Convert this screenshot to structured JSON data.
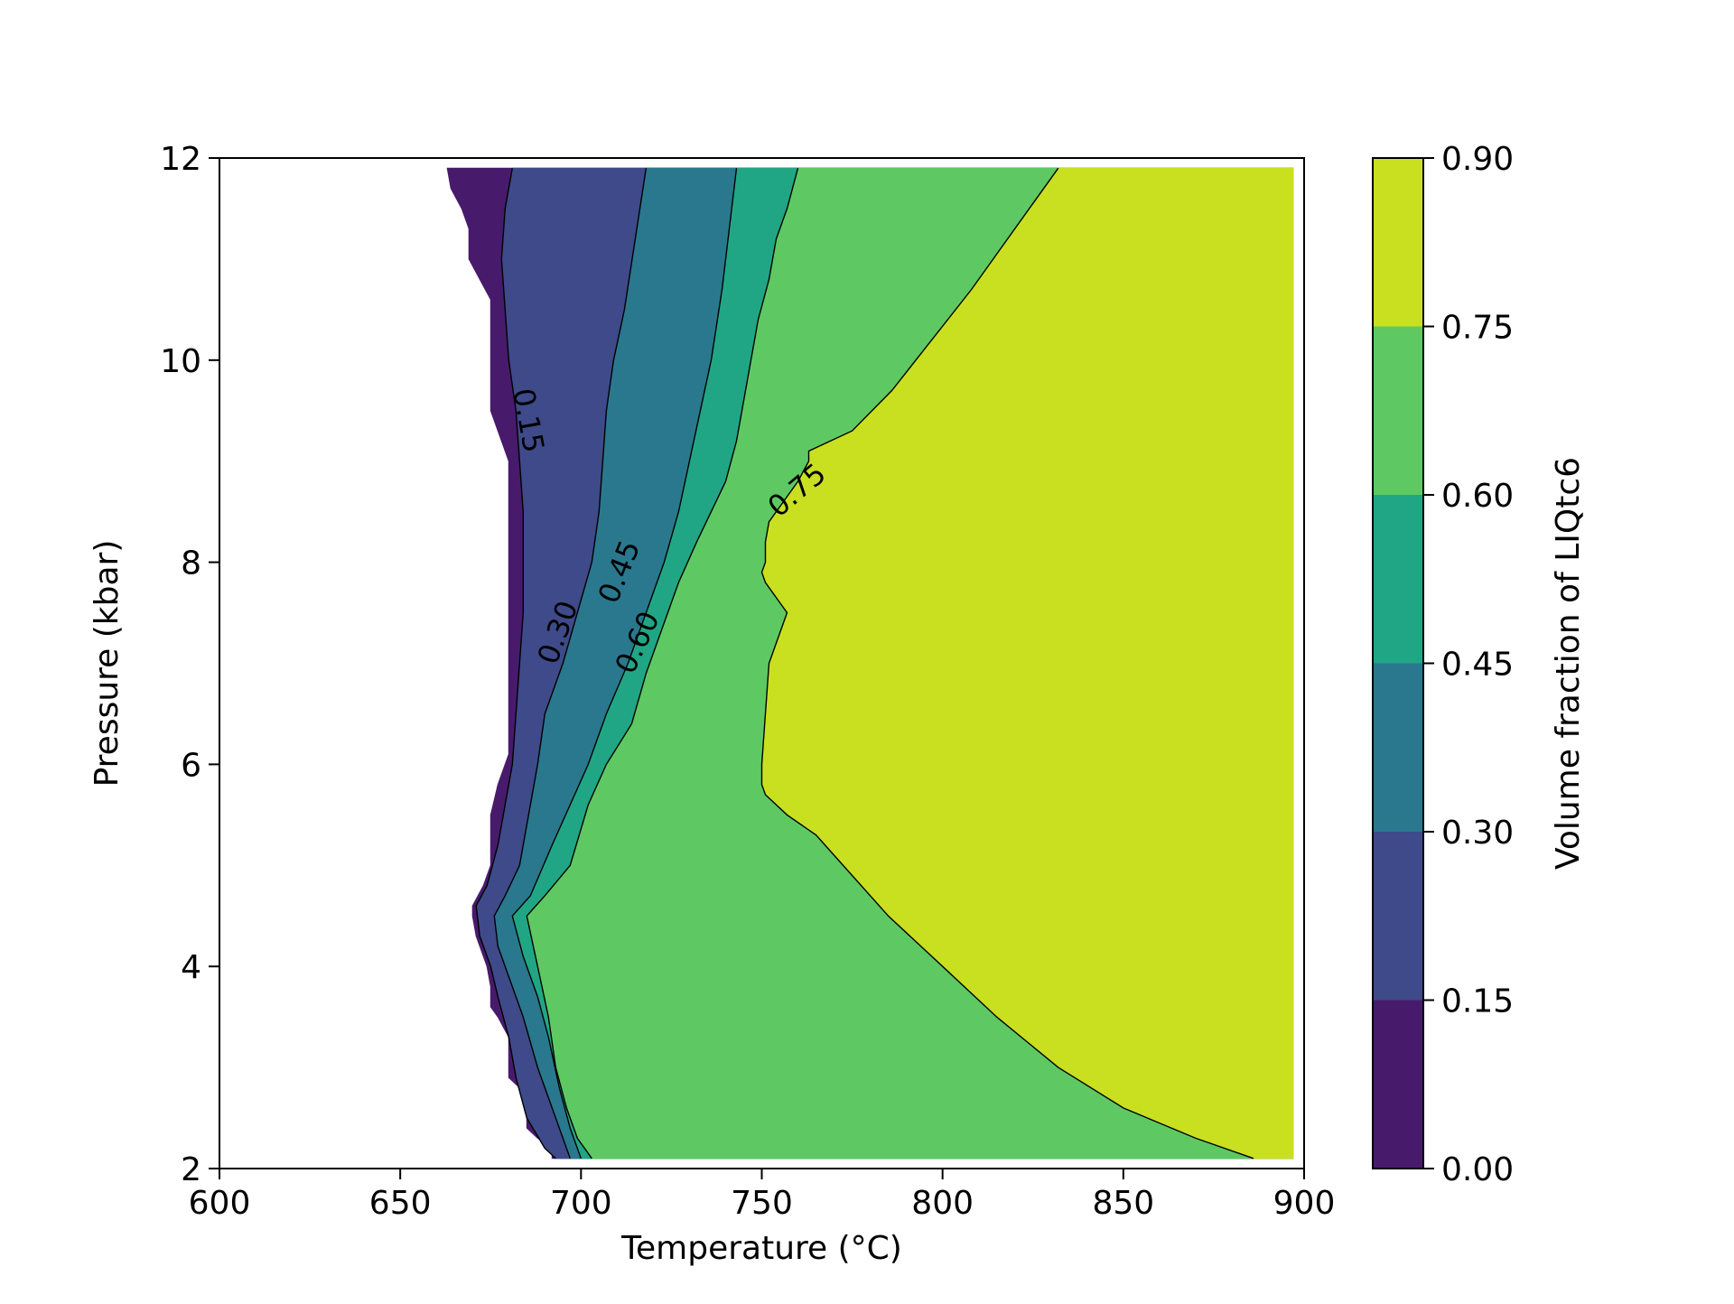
{
  "chart_data": {
    "type": "contourf",
    "title": "",
    "xlabel": "Temperature (°C)",
    "ylabel": "Pressure (kbar)",
    "xlim": [
      600,
      900
    ],
    "ylim": [
      2,
      12
    ],
    "x_ticks": [
      600,
      650,
      700,
      750,
      800,
      850,
      900
    ],
    "y_ticks": [
      2,
      4,
      6,
      8,
      10,
      12
    ],
    "x_tick_labels": [
      "600",
      "650",
      "700",
      "750",
      "800",
      "850",
      "900"
    ],
    "y_tick_labels": [
      "2",
      "4",
      "6",
      "8",
      "10",
      "12"
    ],
    "grid": false,
    "colorbar": {
      "label": "Volume fraction of LIQtc6",
      "levels": [
        0.0,
        0.15,
        0.3,
        0.45,
        0.6,
        0.75,
        0.9
      ],
      "tick_labels": [
        "0.00",
        "0.15",
        "0.30",
        "0.45",
        "0.60",
        "0.75",
        "0.90"
      ],
      "colors": [
        "#481a6c",
        "#3e4a89",
        "#2a788e",
        "#21a685",
        "#5ec962",
        "#c8e020"
      ]
    },
    "contour_labels": [
      {
        "text": "0.15",
        "x": 685,
        "y": 9.4
      },
      {
        "text": "0.30",
        "x": 694,
        "y": 7.3
      },
      {
        "text": "0.45",
        "x": 711,
        "y": 7.9
      },
      {
        "text": "0.60",
        "x": 716,
        "y": 7.2
      },
      {
        "text": "0.75",
        "x": 760,
        "y": 8.7
      }
    ],
    "contours": [
      {
        "level": 0.15,
        "points": [
          [
            681,
            11.9
          ],
          [
            679,
            11.5
          ],
          [
            678,
            11.0
          ],
          [
            679,
            10.5
          ],
          [
            680,
            10.0
          ],
          [
            682,
            9.5
          ],
          [
            683,
            9.0
          ],
          [
            684,
            8.5
          ],
          [
            684,
            8.0
          ],
          [
            684,
            7.5
          ],
          [
            683,
            7.0
          ],
          [
            682,
            6.5
          ],
          [
            681,
            6.0
          ],
          [
            679,
            5.6
          ],
          [
            677,
            5.2
          ],
          [
            674,
            4.8
          ],
          [
            671,
            4.6
          ],
          [
            672,
            4.3
          ],
          [
            675,
            4.0
          ],
          [
            677,
            3.7
          ],
          [
            680,
            3.3
          ],
          [
            682,
            2.9
          ],
          [
            685,
            2.5
          ],
          [
            690,
            2.2
          ],
          [
            693,
            2.1
          ]
        ]
      },
      {
        "level": 0.3,
        "points": [
          [
            718,
            11.9
          ],
          [
            715,
            11.2
          ],
          [
            712,
            10.5
          ],
          [
            709,
            10.0
          ],
          [
            707,
            9.5
          ],
          [
            706,
            9.0
          ],
          [
            705,
            8.5
          ],
          [
            703,
            8.0
          ],
          [
            699,
            7.5
          ],
          [
            695,
            7.0
          ],
          [
            690,
            6.5
          ],
          [
            688,
            6.0
          ],
          [
            686,
            5.6
          ],
          [
            683,
            5.0
          ],
          [
            679,
            4.7
          ],
          [
            676,
            4.5
          ],
          [
            677,
            4.2
          ],
          [
            680,
            3.9
          ],
          [
            684,
            3.5
          ],
          [
            688,
            3.0
          ],
          [
            693,
            2.5
          ],
          [
            697,
            2.1
          ]
        ]
      },
      {
        "level": 0.45,
        "points": [
          [
            743,
            11.9
          ],
          [
            741,
            11.3
          ],
          [
            739,
            10.7
          ],
          [
            736,
            10.0
          ],
          [
            733,
            9.5
          ],
          [
            730,
            9.0
          ],
          [
            727,
            8.5
          ],
          [
            723,
            8.0
          ],
          [
            718,
            7.5
          ],
          [
            713,
            7.0
          ],
          [
            707,
            6.5
          ],
          [
            702,
            6.0
          ],
          [
            697,
            5.6
          ],
          [
            692,
            5.2
          ],
          [
            686,
            4.7
          ],
          [
            681,
            4.5
          ],
          [
            684,
            4.1
          ],
          [
            688,
            3.7
          ],
          [
            691,
            3.3
          ],
          [
            694,
            2.8
          ],
          [
            697,
            2.4
          ],
          [
            700,
            2.1
          ]
        ]
      },
      {
        "level": 0.6,
        "points": [
          [
            760,
            11.9
          ],
          [
            757,
            11.5
          ],
          [
            754,
            11.2
          ],
          [
            752,
            10.8
          ],
          [
            749,
            10.4
          ],
          [
            747,
            10.0
          ],
          [
            745,
            9.6
          ],
          [
            743,
            9.2
          ],
          [
            740,
            8.8
          ],
          [
            736,
            8.5
          ],
          [
            732,
            8.2
          ],
          [
            727,
            7.8
          ],
          [
            722,
            7.3
          ],
          [
            718,
            6.9
          ],
          [
            714,
            6.4
          ],
          [
            707,
            6.0
          ],
          [
            702,
            5.6
          ],
          [
            697,
            5.0
          ],
          [
            690,
            4.7
          ],
          [
            685,
            4.5
          ],
          [
            688,
            4.0
          ],
          [
            691,
            3.5
          ],
          [
            693,
            3.0
          ],
          [
            696,
            2.6
          ],
          [
            699,
            2.3
          ],
          [
            703,
            2.1
          ]
        ]
      },
      {
        "level": 0.75,
        "points": [
          [
            832,
            11.9
          ],
          [
            820,
            11.3
          ],
          [
            808,
            10.7
          ],
          [
            797,
            10.2
          ],
          [
            786,
            9.7
          ],
          [
            775,
            9.3
          ],
          [
            763,
            9.1
          ],
          [
            763,
            9.0
          ],
          [
            760,
            8.8
          ],
          [
            756,
            8.6
          ],
          [
            752,
            8.4
          ],
          [
            751,
            8.2
          ],
          [
            751,
            8.0
          ],
          [
            750,
            7.9
          ],
          [
            751,
            7.8
          ],
          [
            753,
            7.7
          ],
          [
            755,
            7.6
          ],
          [
            757,
            7.5
          ],
          [
            754,
            7.2
          ],
          [
            752,
            7.0
          ],
          [
            751,
            6.5
          ],
          [
            750,
            6.0
          ],
          [
            750,
            5.8
          ],
          [
            751,
            5.7
          ],
          [
            757,
            5.5
          ],
          [
            765,
            5.3
          ],
          [
            770,
            5.1
          ],
          [
            775,
            4.9
          ],
          [
            785,
            4.5
          ],
          [
            800,
            4.0
          ],
          [
            815,
            3.5
          ],
          [
            832,
            3.0
          ],
          [
            850,
            2.6
          ],
          [
            870,
            2.3
          ],
          [
            886,
            2.1
          ]
        ]
      }
    ],
    "data_region_left_boundary": [
      [
        663,
        11.9
      ],
      [
        664,
        11.7
      ],
      [
        667,
        11.5
      ],
      [
        669,
        11.3
      ],
      [
        669,
        11.0
      ],
      [
        672,
        10.8
      ],
      [
        675,
        10.6
      ],
      [
        675,
        10.0
      ],
      [
        675,
        9.5
      ],
      [
        678,
        9.2
      ],
      [
        680,
        9.0
      ],
      [
        680,
        8.0
      ],
      [
        680,
        7.0
      ],
      [
        680,
        6.5
      ],
      [
        680,
        6.1
      ],
      [
        677,
        5.8
      ],
      [
        675,
        5.5
      ],
      [
        675,
        5.0
      ],
      [
        673,
        4.8
      ],
      [
        670,
        4.6
      ],
      [
        670,
        4.5
      ],
      [
        671,
        4.3
      ],
      [
        674,
        4.0
      ],
      [
        675,
        3.8
      ],
      [
        675,
        3.6
      ],
      [
        677,
        3.5
      ],
      [
        680,
        3.3
      ],
      [
        680,
        3.1
      ],
      [
        680,
        2.9
      ],
      [
        683,
        2.8
      ],
      [
        685,
        2.6
      ],
      [
        685,
        2.4
      ],
      [
        688,
        2.3
      ],
      [
        692,
        2.2
      ],
      [
        692,
        2.1
      ]
    ],
    "data_region_extent": {
      "x_max": 897,
      "y_min": 2.1,
      "y_max": 11.9
    }
  }
}
